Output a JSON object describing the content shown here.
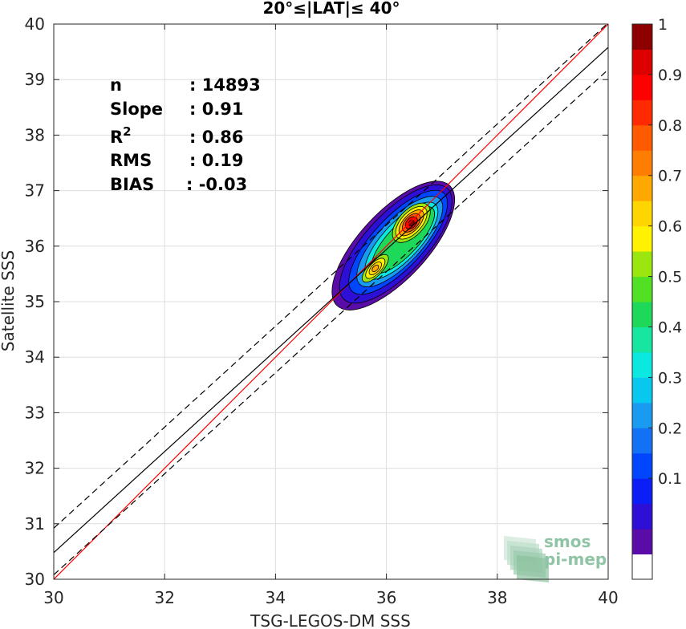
{
  "chart_data": {
    "type": "scatter",
    "title": "20°≤|LAT|≤ 40°",
    "xlabel": "TSG-LEGOS-DM SSS",
    "ylabel": "Satellite SSS",
    "xlim": [
      30,
      40
    ],
    "ylim": [
      30,
      40
    ],
    "xticks": [
      "30",
      "32",
      "34",
      "36",
      "38",
      "40"
    ],
    "yticks": [
      "30",
      "31",
      "32",
      "33",
      "34",
      "35",
      "36",
      "37",
      "38",
      "39",
      "40"
    ],
    "grid": true,
    "stats": [
      {
        "key": "n",
        "sep": ":",
        "value": "14893"
      },
      {
        "key": "Slope",
        "sep": ":",
        "value": "0.91"
      },
      {
        "key": "R",
        "sup": "2",
        "sep": ":",
        "value": "0.86"
      },
      {
        "key": "RMS",
        "sep": ":",
        "value": "0.19"
      },
      {
        "key": "BIAS",
        "sep": ":",
        "value": "-0.03"
      }
    ],
    "lines": [
      {
        "name": "1:1",
        "color": "#ff0000",
        "style": "solid",
        "points": [
          [
            30,
            30
          ],
          [
            40,
            40
          ]
        ]
      },
      {
        "name": "fit",
        "color": "#000000",
        "style": "solid",
        "points": [
          [
            30,
            30.48
          ],
          [
            40,
            39.58
          ]
        ]
      },
      {
        "name": "fit+2rms",
        "color": "#000000",
        "style": "dashed",
        "points": [
          [
            30,
            30.92
          ],
          [
            40,
            40.02
          ]
        ]
      },
      {
        "name": "fit-2rms",
        "color": "#000000",
        "style": "dashed",
        "points": [
          [
            30,
            30.08
          ],
          [
            40,
            39.18
          ]
        ]
      }
    ],
    "density_contours": {
      "levels": [
        0.05,
        0.1,
        0.2,
        0.3,
        0.4,
        0.5,
        0.6,
        0.7,
        0.8,
        0.9
      ],
      "peaks": [
        {
          "x": 36.45,
          "y": 36.42,
          "value": 0.95
        },
        {
          "x": 35.8,
          "y": 35.6,
          "value": 0.7
        }
      ]
    },
    "colorbar": {
      "ticks": [
        "0.1",
        "0.2",
        "0.3",
        "0.4",
        "0.5",
        "0.6",
        "0.7",
        "0.8",
        "0.9",
        "1"
      ],
      "colors": [
        "#ffffff",
        "#5a0ca8",
        "#2d0fd6",
        "#0a1ef5",
        "#0046ff",
        "#1271f5",
        "#1a9bf2",
        "#08c8f0",
        "#0ae8e0",
        "#17e6a0",
        "#1ed85a",
        "#52e024",
        "#9ce60f",
        "#fff200",
        "#ffd500",
        "#ffa900",
        "#ff7d00",
        "#ff5a00",
        "#ff2a00",
        "#ff0000",
        "#dd0000",
        "#8c0000"
      ]
    },
    "watermark": {
      "line1": "smos",
      "line2": "pi-mep"
    }
  }
}
